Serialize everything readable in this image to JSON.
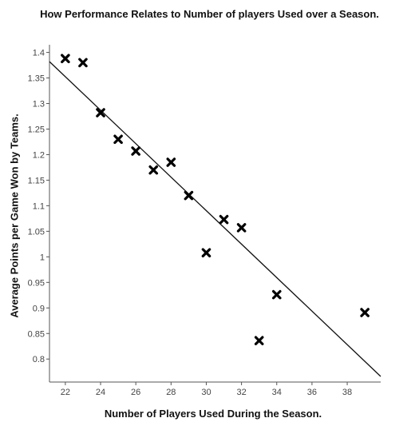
{
  "chart_data": {
    "type": "scatter",
    "title": "How Performance Relates to Number of players Used over a Season.",
    "xlabel": "Number of Players Used During the Season.",
    "ylabel": "Average Points per Game Won by Teams.",
    "xlim": [
      21.1,
      39.9
    ],
    "ylim": [
      0.755,
      1.415
    ],
    "x_ticks": [
      "22",
      "24",
      "26",
      "28",
      "30",
      "32",
      "34",
      "36",
      "38"
    ],
    "y_ticks": [
      "0.8",
      "0.85",
      "0.9",
      "0.95",
      "1",
      "1.05",
      "1.1",
      "1.15",
      "1.2",
      "1.25",
      "1.3",
      "1.35",
      "1.4"
    ],
    "marker": "x",
    "grid": false,
    "points": [
      {
        "x": 22,
        "y": 1.388
      },
      {
        "x": 23,
        "y": 1.38
      },
      {
        "x": 24,
        "y": 1.282
      },
      {
        "x": 25,
        "y": 1.23
      },
      {
        "x": 26,
        "y": 1.207
      },
      {
        "x": 27,
        "y": 1.17
      },
      {
        "x": 28,
        "y": 1.185
      },
      {
        "x": 29,
        "y": 1.12
      },
      {
        "x": 30,
        "y": 1.008
      },
      {
        "x": 31,
        "y": 1.073
      },
      {
        "x": 32,
        "y": 1.057
      },
      {
        "x": 33,
        "y": 0.836
      },
      {
        "x": 34,
        "y": 0.926
      },
      {
        "x": 39,
        "y": 0.891
      }
    ],
    "trendline": {
      "x": [
        21.1,
        39.9
      ],
      "y": [
        1.382,
        0.766
      ]
    }
  }
}
